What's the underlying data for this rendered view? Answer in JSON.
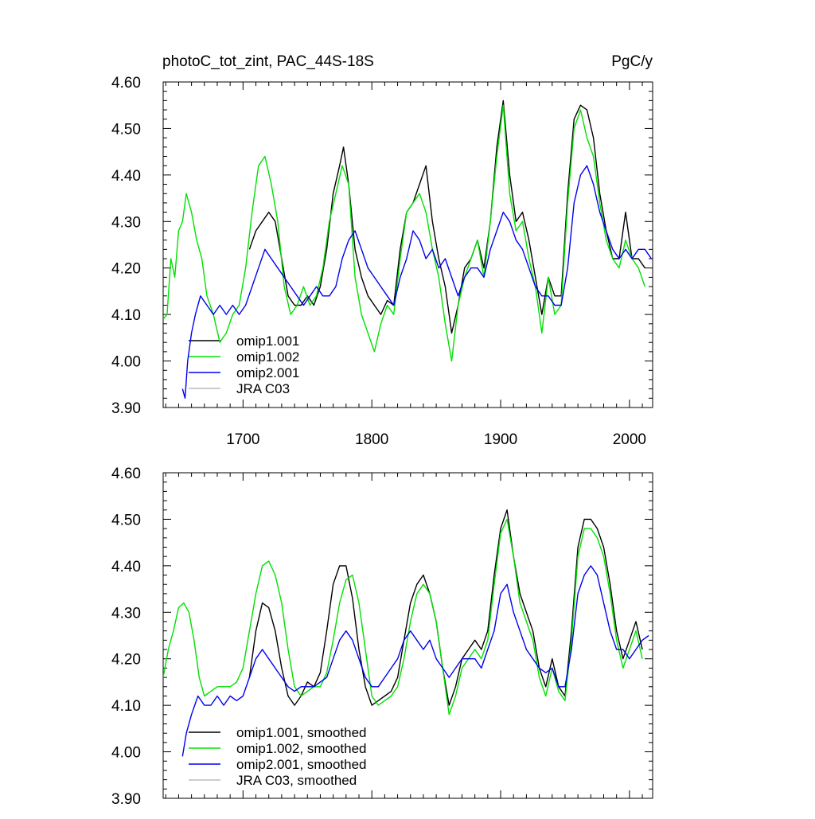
{
  "colors": {
    "omip1_001": "#000000",
    "omip1_002": "#00e000",
    "omip2_001": "#0000ee",
    "jra_c03": "#bbbbbb"
  },
  "chart_data": [
    {
      "type": "line",
      "title": "photoC_tot_zint, PAC_44S-18S",
      "units": "PgC/y",
      "xlim": [
        1638,
        2018
      ],
      "ylim": [
        3.9,
        4.6
      ],
      "x_ticks": [
        1700,
        1800,
        1900,
        2000
      ],
      "x_tick_labels": [
        "1700",
        "1800",
        "1900",
        "2000"
      ],
      "y_ticks": [
        3.9,
        4.0,
        4.1,
        4.2,
        4.3,
        4.4,
        4.5,
        4.6
      ],
      "y_tick_labels": [
        "3.90",
        "4.00",
        "4.10",
        "4.20",
        "4.30",
        "4.40",
        "4.50",
        "4.60"
      ],
      "legend_position": "bottom-left",
      "series": [
        {
          "name": "omip1.001",
          "color_key": "omip1_001",
          "x": [
            1705,
            1710,
            1715,
            1720,
            1725,
            1730,
            1735,
            1740,
            1745,
            1750,
            1755,
            1760,
            1765,
            1770,
            1775,
            1778,
            1782,
            1787,
            1792,
            1797,
            1802,
            1807,
            1812,
            1817,
            1822,
            1827,
            1832,
            1837,
            1842,
            1847,
            1852,
            1857,
            1862,
            1867,
            1872,
            1877,
            1882,
            1887,
            1892,
            1897,
            1902,
            1907,
            1912,
            1917,
            1922,
            1927,
            1932,
            1937,
            1942,
            1947,
            1952,
            1957,
            1962,
            1967,
            1972,
            1977,
            1982,
            1987,
            1992,
            1997,
            2002,
            2007,
            2012
          ],
          "y": [
            4.24,
            4.28,
            4.3,
            4.32,
            4.3,
            4.22,
            4.14,
            4.12,
            4.12,
            4.14,
            4.12,
            4.16,
            4.24,
            4.36,
            4.42,
            4.46,
            4.38,
            4.24,
            4.18,
            4.14,
            4.12,
            4.1,
            4.13,
            4.12,
            4.24,
            4.32,
            4.34,
            4.38,
            4.42,
            4.3,
            4.22,
            4.16,
            4.06,
            4.12,
            4.2,
            4.22,
            4.26,
            4.2,
            4.3,
            4.46,
            4.56,
            4.4,
            4.3,
            4.32,
            4.26,
            4.18,
            4.1,
            4.18,
            4.14,
            4.14,
            4.36,
            4.52,
            4.55,
            4.54,
            4.48,
            4.36,
            4.28,
            4.22,
            4.22,
            4.32,
            4.22,
            4.22,
            4.2
          ]
        },
        {
          "name": "omip1.002",
          "color_key": "omip1_002",
          "x": [
            1638,
            1641,
            1644,
            1647,
            1650,
            1653,
            1656,
            1660,
            1664,
            1668,
            1672,
            1677,
            1682,
            1687,
            1692,
            1697,
            1702,
            1707,
            1712,
            1717,
            1722,
            1727,
            1732,
            1737,
            1742,
            1747,
            1752,
            1757,
            1762,
            1767,
            1772,
            1777,
            1782,
            1787,
            1792,
            1797,
            1802,
            1807,
            1812,
            1817,
            1822,
            1827,
            1832,
            1837,
            1842,
            1847,
            1852,
            1857,
            1862,
            1867,
            1872,
            1877,
            1882,
            1887,
            1892,
            1897,
            1902,
            1907,
            1912,
            1917,
            1922,
            1927,
            1932,
            1937,
            1942,
            1947,
            1952,
            1957,
            1962,
            1967,
            1972,
            1977,
            1982,
            1987,
            1992,
            1997,
            2002,
            2007,
            2012
          ],
          "y": [
            4.09,
            4.1,
            4.22,
            4.18,
            4.28,
            4.3,
            4.36,
            4.32,
            4.26,
            4.22,
            4.14,
            4.1,
            4.04,
            4.06,
            4.1,
            4.12,
            4.2,
            4.32,
            4.42,
            4.44,
            4.38,
            4.3,
            4.16,
            4.1,
            4.12,
            4.16,
            4.12,
            4.14,
            4.2,
            4.3,
            4.36,
            4.42,
            4.38,
            4.18,
            4.1,
            4.06,
            4.02,
            4.08,
            4.12,
            4.1,
            4.22,
            4.32,
            4.34,
            4.36,
            4.32,
            4.24,
            4.18,
            4.08,
            4.0,
            4.12,
            4.18,
            4.22,
            4.26,
            4.18,
            4.3,
            4.44,
            4.55,
            4.36,
            4.28,
            4.3,
            4.22,
            4.16,
            4.06,
            4.18,
            4.1,
            4.12,
            4.34,
            4.5,
            4.54,
            4.48,
            4.44,
            4.34,
            4.26,
            4.22,
            4.2,
            4.26,
            4.22,
            4.2,
            4.16
          ]
        },
        {
          "name": "omip2.001",
          "color_key": "omip2_001",
          "x": [
            1653,
            1655,
            1657,
            1660,
            1663,
            1667,
            1672,
            1677,
            1682,
            1687,
            1692,
            1697,
            1702,
            1707,
            1712,
            1717,
            1722,
            1727,
            1732,
            1737,
            1742,
            1747,
            1752,
            1757,
            1762,
            1767,
            1772,
            1777,
            1782,
            1787,
            1792,
            1797,
            1802,
            1807,
            1812,
            1817,
            1822,
            1827,
            1832,
            1837,
            1842,
            1847,
            1852,
            1857,
            1862,
            1867,
            1872,
            1877,
            1882,
            1887,
            1892,
            1897,
            1902,
            1907,
            1912,
            1917,
            1922,
            1927,
            1932,
            1937,
            1942,
            1947,
            1952,
            1957,
            1962,
            1967,
            1972,
            1977,
            1982,
            1987,
            1992,
            1997,
            2002,
            2007,
            2012,
            2017
          ],
          "y": [
            3.94,
            3.92,
            4.0,
            4.06,
            4.1,
            4.14,
            4.12,
            4.1,
            4.12,
            4.1,
            4.12,
            4.1,
            4.12,
            4.16,
            4.2,
            4.24,
            4.22,
            4.2,
            4.18,
            4.16,
            4.14,
            4.12,
            4.14,
            4.16,
            4.14,
            4.14,
            4.16,
            4.22,
            4.26,
            4.28,
            4.24,
            4.2,
            4.18,
            4.16,
            4.14,
            4.12,
            4.18,
            4.22,
            4.28,
            4.26,
            4.22,
            4.24,
            4.2,
            4.22,
            4.18,
            4.14,
            4.18,
            4.2,
            4.2,
            4.18,
            4.24,
            4.28,
            4.32,
            4.3,
            4.26,
            4.24,
            4.2,
            4.16,
            4.14,
            4.14,
            4.12,
            4.12,
            4.2,
            4.34,
            4.4,
            4.42,
            4.38,
            4.32,
            4.28,
            4.24,
            4.22,
            4.24,
            4.22,
            4.24,
            4.24,
            4.22
          ]
        },
        {
          "name": "JRA C03",
          "color_key": "jra_c03",
          "x": [],
          "y": []
        }
      ]
    },
    {
      "type": "line",
      "title": "",
      "xlim": [
        1638,
        2018
      ],
      "ylim": [
        3.9,
        4.6
      ],
      "x_ticks": [
        1700,
        1800,
        1900,
        2000
      ],
      "y_ticks": [
        3.9,
        4.0,
        4.1,
        4.2,
        4.3,
        4.4,
        4.5,
        4.6
      ],
      "y_tick_labels": [
        "3.90",
        "4.00",
        "4.10",
        "4.20",
        "4.30",
        "4.40",
        "4.50",
        "4.60"
      ],
      "legend_position": "bottom-left",
      "series": [
        {
          "name": "omip1.001, smoothed",
          "color_key": "omip1_001",
          "x": [
            1705,
            1710,
            1715,
            1720,
            1725,
            1730,
            1735,
            1740,
            1745,
            1750,
            1755,
            1760,
            1765,
            1770,
            1775,
            1780,
            1785,
            1790,
            1795,
            1800,
            1805,
            1810,
            1815,
            1820,
            1825,
            1830,
            1835,
            1840,
            1845,
            1850,
            1855,
            1860,
            1865,
            1870,
            1875,
            1880,
            1885,
            1890,
            1895,
            1900,
            1905,
            1910,
            1915,
            1920,
            1925,
            1930,
            1935,
            1940,
            1945,
            1950,
            1955,
            1960,
            1965,
            1970,
            1975,
            1980,
            1985,
            1990,
            1995,
            2000,
            2005,
            2010
          ],
          "y": [
            4.16,
            4.26,
            4.32,
            4.31,
            4.26,
            4.18,
            4.12,
            4.1,
            4.12,
            4.15,
            4.14,
            4.17,
            4.26,
            4.36,
            4.4,
            4.4,
            4.33,
            4.22,
            4.14,
            4.1,
            4.11,
            4.12,
            4.13,
            4.16,
            4.24,
            4.32,
            4.36,
            4.38,
            4.34,
            4.28,
            4.18,
            4.1,
            4.14,
            4.2,
            4.22,
            4.24,
            4.22,
            4.26,
            4.38,
            4.48,
            4.52,
            4.42,
            4.34,
            4.3,
            4.26,
            4.18,
            4.14,
            4.2,
            4.14,
            4.12,
            4.26,
            4.44,
            4.5,
            4.5,
            4.48,
            4.44,
            4.36,
            4.26,
            4.2,
            4.24,
            4.28,
            4.22
          ]
        },
        {
          "name": "omip1.002, smoothed",
          "color_key": "omip1_002",
          "x": [
            1638,
            1642,
            1646,
            1650,
            1654,
            1658,
            1662,
            1666,
            1670,
            1675,
            1680,
            1685,
            1690,
            1695,
            1700,
            1705,
            1710,
            1715,
            1720,
            1725,
            1730,
            1735,
            1740,
            1745,
            1750,
            1755,
            1760,
            1765,
            1770,
            1775,
            1780,
            1785,
            1790,
            1795,
            1800,
            1805,
            1810,
            1815,
            1820,
            1825,
            1830,
            1835,
            1840,
            1845,
            1850,
            1855,
            1860,
            1865,
            1870,
            1875,
            1880,
            1885,
            1890,
            1895,
            1900,
            1905,
            1910,
            1915,
            1920,
            1925,
            1930,
            1935,
            1940,
            1945,
            1950,
            1955,
            1960,
            1965,
            1970,
            1975,
            1980,
            1985,
            1990,
            1995,
            2000,
            2005,
            2010
          ],
          "y": [
            4.16,
            4.22,
            4.26,
            4.31,
            4.32,
            4.3,
            4.24,
            4.16,
            4.12,
            4.13,
            4.14,
            4.14,
            4.14,
            4.15,
            4.18,
            4.26,
            4.34,
            4.4,
            4.41,
            4.38,
            4.32,
            4.22,
            4.14,
            4.12,
            4.13,
            4.14,
            4.14,
            4.17,
            4.24,
            4.32,
            4.37,
            4.38,
            4.32,
            4.22,
            4.12,
            4.1,
            4.11,
            4.12,
            4.14,
            4.2,
            4.28,
            4.34,
            4.36,
            4.34,
            4.28,
            4.18,
            4.08,
            4.12,
            4.18,
            4.2,
            4.22,
            4.2,
            4.24,
            4.36,
            4.47,
            4.5,
            4.42,
            4.32,
            4.28,
            4.24,
            4.16,
            4.12,
            4.18,
            4.13,
            4.11,
            4.24,
            4.42,
            4.48,
            4.48,
            4.46,
            4.42,
            4.34,
            4.24,
            4.18,
            4.22,
            4.26,
            4.2
          ]
        },
        {
          "name": "omip2.001, smoothed",
          "color_key": "omip2_001",
          "x": [
            1653,
            1656,
            1660,
            1665,
            1670,
            1675,
            1680,
            1685,
            1690,
            1695,
            1700,
            1705,
            1710,
            1715,
            1720,
            1725,
            1730,
            1735,
            1740,
            1745,
            1750,
            1755,
            1760,
            1765,
            1770,
            1775,
            1780,
            1785,
            1790,
            1795,
            1800,
            1805,
            1810,
            1815,
            1820,
            1825,
            1830,
            1835,
            1840,
            1845,
            1850,
            1855,
            1860,
            1865,
            1870,
            1875,
            1880,
            1885,
            1890,
            1895,
            1900,
            1905,
            1910,
            1915,
            1920,
            1925,
            1930,
            1935,
            1940,
            1945,
            1950,
            1955,
            1960,
            1965,
            1970,
            1975,
            1980,
            1985,
            1990,
            1995,
            2000,
            2005,
            2010,
            2015
          ],
          "y": [
            3.99,
            4.04,
            4.08,
            4.12,
            4.1,
            4.1,
            4.12,
            4.1,
            4.12,
            4.11,
            4.12,
            4.16,
            4.2,
            4.22,
            4.2,
            4.18,
            4.16,
            4.14,
            4.13,
            4.14,
            4.14,
            4.14,
            4.15,
            4.16,
            4.2,
            4.24,
            4.26,
            4.24,
            4.2,
            4.16,
            4.14,
            4.14,
            4.16,
            4.18,
            4.2,
            4.24,
            4.26,
            4.24,
            4.22,
            4.24,
            4.2,
            4.18,
            4.16,
            4.18,
            4.2,
            4.2,
            4.2,
            4.18,
            4.22,
            4.26,
            4.34,
            4.36,
            4.3,
            4.26,
            4.22,
            4.2,
            4.18,
            4.17,
            4.18,
            4.14,
            4.14,
            4.22,
            4.34,
            4.38,
            4.4,
            4.38,
            4.32,
            4.26,
            4.22,
            4.22,
            4.2,
            4.22,
            4.24,
            4.25
          ]
        },
        {
          "name": "JRA C03, smoothed",
          "color_key": "jra_c03",
          "x": [],
          "y": []
        }
      ]
    }
  ]
}
